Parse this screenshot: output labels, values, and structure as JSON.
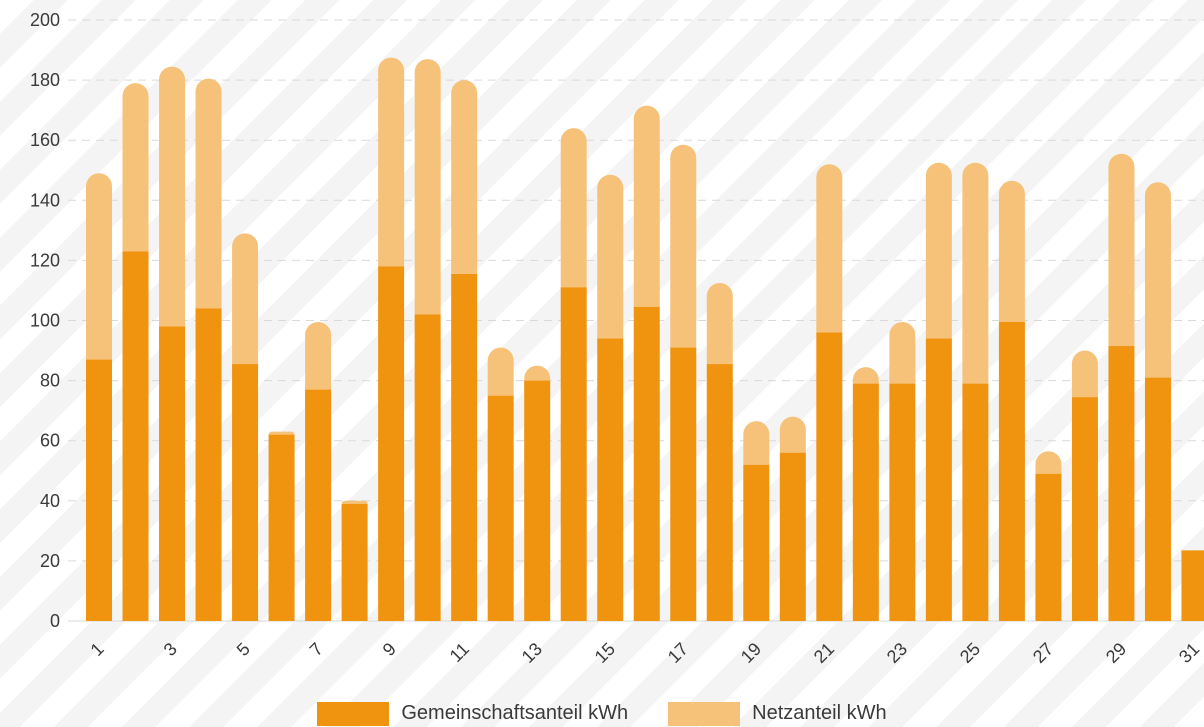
{
  "colors": {
    "community": "#f0930e",
    "grid": "#f6c27a",
    "background_stripe": "#f4f4f4",
    "gridline": "#d9d9d9",
    "text": "#3a3a3a"
  },
  "legend": {
    "community_label": "Gemeinschaftsanteil kWh",
    "grid_label": "Netzanteil kWh"
  },
  "chart_data": {
    "type": "bar",
    "stacked": true,
    "ylim": [
      0,
      200
    ],
    "yticks": [
      0,
      20,
      40,
      60,
      80,
      100,
      120,
      140,
      160,
      180,
      200
    ],
    "x": [
      1,
      2,
      3,
      4,
      5,
      6,
      7,
      8,
      9,
      10,
      11,
      12,
      13,
      14,
      15,
      16,
      17,
      18,
      19,
      20,
      21,
      22,
      23,
      24,
      25,
      26,
      27,
      28,
      29,
      30,
      31
    ],
    "xtick_labels": [
      "1",
      "3",
      "5",
      "7",
      "9",
      "11",
      "13",
      "15",
      "17",
      "19",
      "21",
      "23",
      "25",
      "27",
      "29",
      "31"
    ],
    "series": [
      {
        "name": "Gemeinschaftsanteil kWh",
        "values": [
          87,
          123,
          98,
          104,
          85.5,
          62,
          77,
          39,
          118,
          102,
          115.5,
          75,
          80,
          111,
          94,
          104.5,
          91,
          85.5,
          52,
          56,
          96,
          79,
          79,
          94,
          79,
          99.5,
          49,
          74.5,
          91.5,
          81,
          23.5
        ]
      },
      {
        "name": "Netzanteil kWh",
        "values": [
          62,
          56,
          86.5,
          76.5,
          43.5,
          1,
          22.5,
          1,
          69.5,
          85,
          64.5,
          16,
          5,
          53,
          54.5,
          67,
          67.5,
          27,
          14.5,
          12,
          56,
          5.5,
          20.5,
          58.5,
          73.5,
          47,
          7.5,
          15.5,
          64,
          65,
          0
        ]
      }
    ]
  }
}
